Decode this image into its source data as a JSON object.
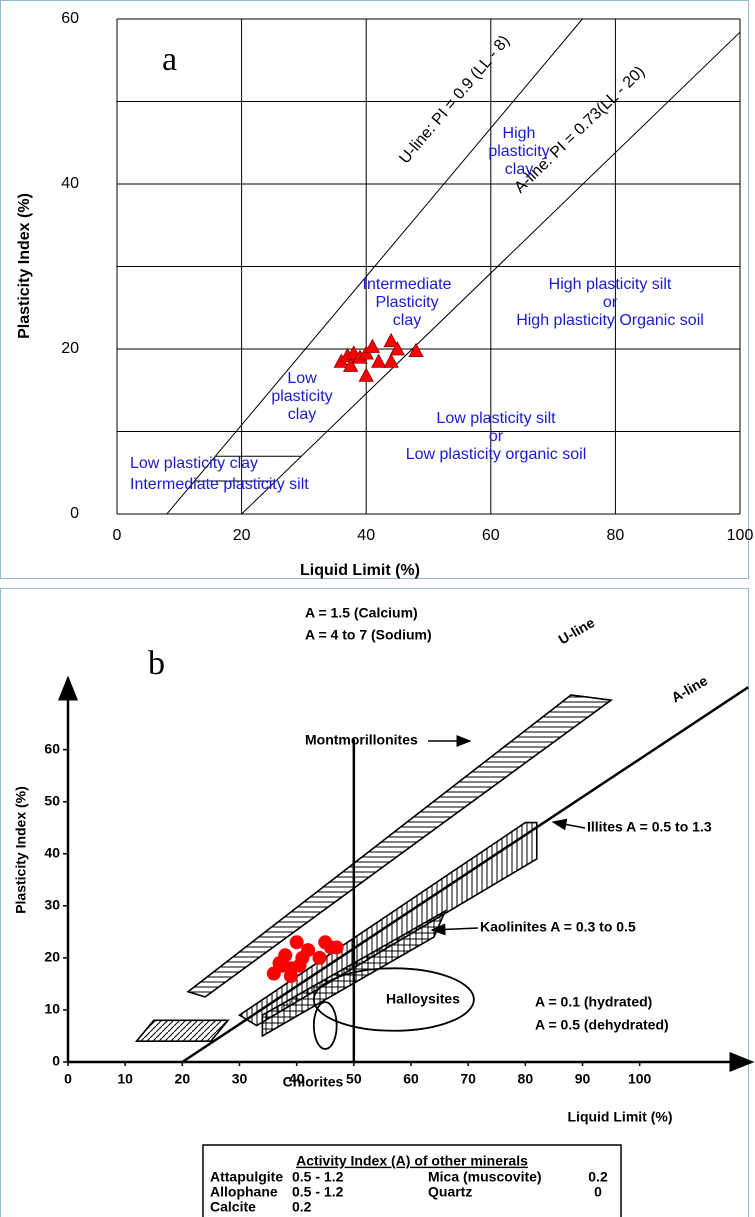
{
  "chart_data": [
    {
      "type": "scatter",
      "panel_label": "a",
      "x_label": "Liquid Limit (%)",
      "y_label": "Plasticity Index (%)",
      "xlim": [
        0,
        100
      ],
      "ylim": [
        0,
        60
      ],
      "xticks": [
        0,
        20,
        40,
        60,
        80,
        100
      ],
      "yticks": [
        0,
        20,
        40,
        60
      ],
      "minor_yticks": [
        10,
        30,
        50
      ],
      "grid": true,
      "marker": "triangle",
      "color": "#ff0000",
      "x": [
        36,
        37,
        38,
        37.5,
        39,
        40,
        41,
        42,
        44,
        44,
        45,
        48,
        40
      ],
      "y": [
        18.5,
        19.2,
        19.5,
        18,
        19,
        19.5,
        20.3,
        18.5,
        21,
        18.5,
        20,
        19.8,
        16.8
      ],
      "lines": [
        {
          "label": "U-line: PI = 0.9 (LL - 8)",
          "x": [
            8,
            74.7
          ],
          "y": [
            0,
            60
          ]
        },
        {
          "label": "A-line: PI = 0.73(LL - 20)",
          "x": [
            20,
            100
          ],
          "y": [
            0,
            58.4
          ]
        }
      ],
      "segments": [
        {
          "x": [
            15.8,
            29.6
          ],
          "y": [
            7,
            7
          ]
        },
        {
          "x": [
            12.4,
            25.5
          ],
          "y": [
            4,
            4
          ]
        }
      ],
      "annotations": [
        [
          "High",
          "plasticity",
          "clay"
        ],
        [
          "Intermediate",
          "Plasticity",
          "clay"
        ],
        [
          "High plasticity silt",
          "or",
          "High plasticity Organic soil"
        ],
        [
          "Low",
          "plasticity",
          "clay"
        ],
        [
          "Low plasticity silt",
          "or",
          "Low plasticity organic soil"
        ],
        [
          "Low plasticity clay",
          "Intermediate plasticity silt"
        ]
      ]
    },
    {
      "type": "scatter",
      "panel_label": "b",
      "x_label": "Liquid Limit (%)",
      "y_label": "Plasticity Index (%)",
      "xlim": [
        0,
        120
      ],
      "ylim": [
        0,
        68
      ],
      "xticks": [
        0,
        10,
        20,
        30,
        40,
        50,
        60,
        70,
        80,
        90,
        100
      ],
      "yticks": [
        0,
        10,
        20,
        30,
        40,
        50,
        60
      ],
      "marker": "circle",
      "color": "#ff0000",
      "x": [
        36,
        37,
        38,
        39,
        39,
        40,
        41,
        42,
        40.5,
        44,
        45,
        46,
        47,
        37.5
      ],
      "y": [
        17,
        19,
        20.5,
        18,
        16.5,
        23,
        20,
        21.5,
        18.5,
        20,
        23,
        22,
        22,
        18.5
      ],
      "vline": {
        "x": 50,
        "y": [
          0,
          62
        ]
      },
      "a_line": {
        "x": [
          20,
          119
        ],
        "y": [
          0,
          72
        ]
      },
      "regions": [
        {
          "hatch": "horizontal",
          "points": [
            [
              21,
              13.5
            ],
            [
              24,
              12.5
            ],
            [
              95,
              69.5
            ],
            [
              88,
              70.5
            ]
          ]
        },
        {
          "hatch": "vertical",
          "points": [
            [
              30,
              9
            ],
            [
              33,
              7
            ],
            [
              82,
              39
            ],
            [
              82,
              46
            ],
            [
              80,
              46
            ]
          ]
        },
        {
          "hatch": "cross",
          "points": [
            [
              34,
              5
            ],
            [
              34,
              9
            ],
            [
              66,
              29
            ],
            [
              64,
              24
            ]
          ]
        },
        {
          "hatch": "diagonal",
          "points": [
            [
              12,
              4
            ],
            [
              15,
              8
            ],
            [
              28,
              8
            ],
            [
              25,
              4
            ]
          ]
        }
      ],
      "ellipses": [
        {
          "x": 57,
          "y": 12,
          "rx": 14,
          "ry": 6
        },
        {
          "x": 45,
          "y": 7,
          "rx": 2,
          "ry": 4.5
        }
      ],
      "annotations": [
        "U-line",
        "A-line",
        "A = 1.5 (Calcium)",
        "A = 4 to 7 (Sodium)",
        "Montmorillonites",
        "Illites A = 0.5 to 1.3",
        "Kaolinites A = 0.3 to 0.5",
        "Halloysites",
        "A = 0.1 (hydrated)",
        "A = 0.5 (dehydrated)",
        "Chlorites"
      ],
      "table": {
        "title": "Activity Index (A) of other minerals",
        "rows": [
          [
            "Attapulgite",
            "0.5 - 1.2",
            "Mica  (muscovite)",
            "0.2"
          ],
          [
            "Allophane",
            "0.5 - 1.2",
            "Quartz",
            "0"
          ],
          [
            "Calcite",
            "0.2"
          ]
        ]
      }
    }
  ]
}
